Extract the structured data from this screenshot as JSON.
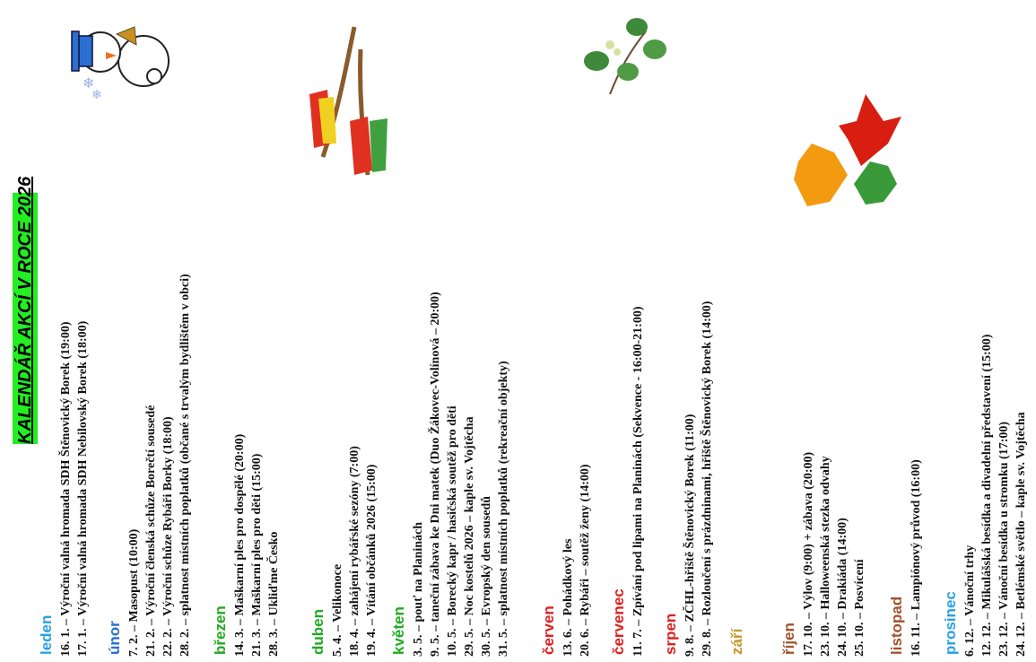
{
  "title": "KALENDÁŘ AKCÍ V ROCE 2026",
  "months": [
    {
      "name": "leden",
      "items": [
        "16. 1. – Výroční valná hromada SDH Štěnovický Borek (19:00)",
        "17. 1. – Výroční valná hromada SDH Nebilovský Borek (18:00)"
      ]
    },
    {
      "name": "únor",
      "items": [
        "7. 2. – Masopust (10:00)",
        "21. 2. – Výroční členská schůze Borečtí sousedé",
        "22. 2. – Výroční schůze Rybáři Borky (18:00)",
        "28. 2. – splatnost místních poplatků (občané s trvalým bydlištěm v obci)"
      ]
    },
    {
      "name": "březen",
      "items": [
        "14. 3. – Maškarní ples pro dospělé (20:00)",
        "21. 3. – Maškarní ples pro děti (15:00)",
        "28. 3. – Ukliďme Česko"
      ]
    },
    {
      "name": "duben",
      "items": [
        "5. 4. – Velikonoce",
        "18. 4. – zahájení rybářské sezóny (7:00)",
        "19. 4. – Vítání občánků 2026 (15:00)"
      ]
    },
    {
      "name": "květen",
      "items": [
        "3. 5. – pouť na Planinách",
        "9. 5. – taneční zábava ke Dni matek (Duo Žákovec-Volínová – 20:00)",
        "10. 5. – Borecký kapr / hasičská soutěž pro děti",
        "29. 5. – Noc kostelů 2026 – kaple sv. Vojtěcha",
        "30. 5. – Evropský den sousedů",
        "31. 5. – splatnost místních poplatků (rekreační objekty)"
      ]
    },
    {
      "name": "červen",
      "items": [
        "13. 6. – Pohádkový les",
        "20. 6. – Rybáři – soutěž ženy (14:00)"
      ]
    },
    {
      "name": "červenec",
      "items": [
        "11. 7. – Zpívání pod lipami na Planinách (Sekvence - 16:00-21:00)"
      ]
    },
    {
      "name": "srpen",
      "items": [
        "9. 8. – ZČHL-hřiště Štěnovický Borek (11:00)",
        "29. 8. – Rozloučení s prázdninami, hřiště Štěnovický Borek (14:00)"
      ]
    },
    {
      "name": "září",
      "items": []
    },
    {
      "name": "říjen",
      "items": [
        "17. 10. – Výlov (9:00) + zábava (20:00)",
        "23. 10. – Halloweenská stezka odvahy",
        "24. 10. – Drakiáda (14:00)",
        "25. 10. – Posvícení"
      ]
    },
    {
      "name": "listopad",
      "items": [
        "16. 11. – Lampiónový průvod (16:00)"
      ]
    },
    {
      "name": "prosinec",
      "items": [
        "6. 12. – Vánoční trhy",
        "12. 12. – Mikulášská besídka a divadelní představení (15:00)",
        "23. 12. – Vánoční besídka u stromku (17:00)",
        "24. 12. – Betlémské světlo – kaple sv. Vojtěcha"
      ]
    }
  ]
}
